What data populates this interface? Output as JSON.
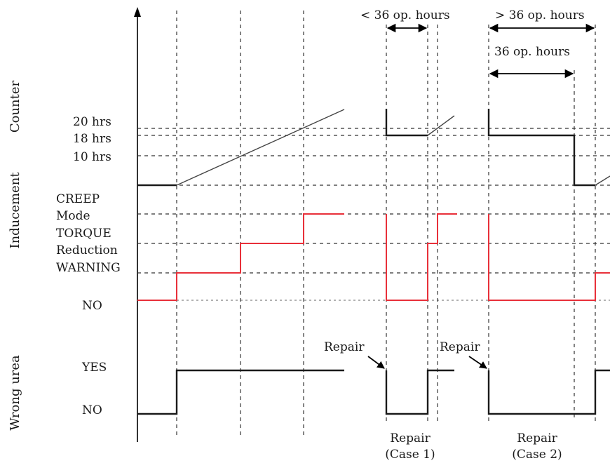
{
  "axis_titles": {
    "counter": "Counter",
    "inducement": "Inducement",
    "wrong_urea": "Wrong urea"
  },
  "counter_levels": [
    "20 hrs",
    "18 hrs",
    "10 hrs"
  ],
  "inducement_levels": [
    "CREEP",
    "Mode",
    "TORQUE",
    "Reduction",
    "WARNING",
    "NO"
  ],
  "wrong_urea_levels": [
    "YES",
    "NO"
  ],
  "annotations": {
    "less_than_36": "< 36 op. hours",
    "greater_than_36": "> 36 op. hours",
    "exactly_36": "36 op. hours",
    "repair_left": "Repair",
    "repair_right": "Repair"
  },
  "repair_cases": {
    "case1_top": "Repair",
    "case1_bottom": "(Case 1)",
    "case2_top": "Repair",
    "case2_bottom": "(Case 2)"
  },
  "colors": {
    "inducement_line": "#e8303a",
    "counter_line": "#1a1a1a",
    "gridline": "#333333"
  }
}
